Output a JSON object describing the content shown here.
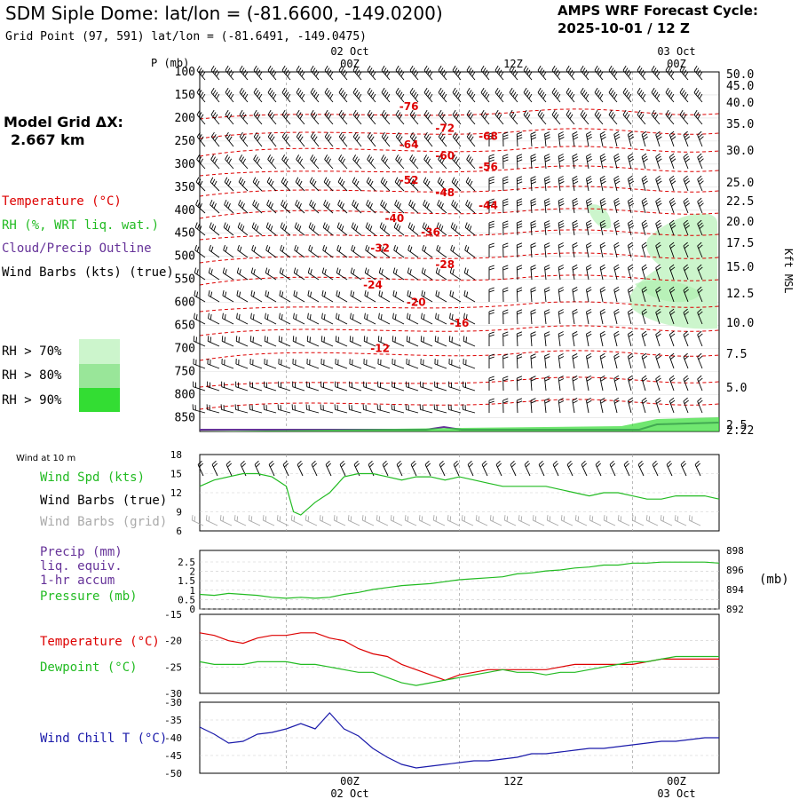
{
  "title": "SDM Siple Dome:  lat/lon = (-81.6600, -149.0200)",
  "subtitle": "Grid Point (97, 591) lat/lon = (-81.6491, -149.0475)",
  "cycle_line1": "AMPS WRF Forecast Cycle:",
  "cycle_line2": "2025-10-01 / 12  Z",
  "model_grid_label": "Model Grid ΔX:",
  "model_grid_value": "2.667 km",
  "legend": {
    "temperature": "Temperature (°C)",
    "rh": "RH (%, WRT liq. wat.)",
    "cloud": "Cloud/Precip Outline",
    "wind": "Wind Barbs (kts) (true)",
    "rh70": "RH > 70%",
    "rh80": "RH > 80%",
    "rh90": "RH > 90%",
    "rh70_color": "#ccf5cc",
    "rh80_color": "#99e699",
    "rh90_color": "#33dd33"
  },
  "colors": {
    "temp": "#dd0000",
    "rh": "#22bb22",
    "cloud": "#663399",
    "wind": "#000000",
    "chill": "#1a1aaa",
    "grid": "#aaaaaa"
  },
  "time_labels": {
    "top_dates": [
      "02 Oct",
      "03 Oct"
    ],
    "top_hours": [
      "00Z",
      "12Z",
      "00Z"
    ],
    "bottom_hours": [
      "00Z",
      "12Z",
      "00Z"
    ],
    "bottom_dates": [
      "02 Oct",
      "03 Oct"
    ]
  },
  "labels": {
    "p_axis": "P (mb)",
    "kft": "Kft MSL",
    "wind10m": "Wind at 10 m",
    "wind_spd": "Wind Spd (kts)",
    "wind_barbs_true": "Wind Barbs (true)",
    "wind_barbs_grid": "Wind Barbs (grid)",
    "precip": "Precip (mm)",
    "liq": "liq. equiv.",
    "accum": "1-hr accum",
    "pressure": "Pressure (mb)",
    "mb": "(mb)",
    "temp": "Temperature (°C)",
    "dew": "Dewpoint (°C)",
    "chill": "Wind Chill T (°C)"
  },
  "chart_data": [
    {
      "type": "contour",
      "name": "cross-section",
      "x_hours": [
        0,
        36
      ],
      "time_ticks": [
        {
          "hour": 6,
          "label": "00Z"
        },
        {
          "hour": 18,
          "label": "12Z"
        },
        {
          "hour": 30,
          "label": "00Z"
        }
      ],
      "pressure_levels": [
        100,
        150,
        200,
        250,
        300,
        350,
        400,
        450,
        500,
        550,
        600,
        650,
        700,
        750,
        800,
        850
      ],
      "height_kft": [
        "50.0",
        "45.0",
        "40.0",
        "35.0",
        "30.0",
        "25.0",
        "22.5",
        "20.0",
        "17.5",
        "15.0",
        "12.5",
        "10.0",
        "7.5",
        "5.0",
        "2.5",
        "2.22"
      ],
      "temperature_labels": [
        {
          "value": "-76",
          "hour": 14.5,
          "p": 175
        },
        {
          "value": "-72",
          "hour": 17.0,
          "p": 222
        },
        {
          "value": "-68",
          "hour": 20.0,
          "p": 240
        },
        {
          "value": "-64",
          "hour": 14.5,
          "p": 258
        },
        {
          "value": "-60",
          "hour": 17.0,
          "p": 282
        },
        {
          "value": "-56",
          "hour": 20.0,
          "p": 306
        },
        {
          "value": "-52",
          "hour": 14.5,
          "p": 335
        },
        {
          "value": "-48",
          "hour": 17.0,
          "p": 362
        },
        {
          "value": "-44",
          "hour": 20.0,
          "p": 390
        },
        {
          "value": "-40",
          "hour": 13.5,
          "p": 418
        },
        {
          "value": "-36",
          "hour": 16.0,
          "p": 448
        },
        {
          "value": "-32",
          "hour": 12.5,
          "p": 482
        },
        {
          "value": "-28",
          "hour": 17.0,
          "p": 518
        },
        {
          "value": "-24",
          "hour": 12.0,
          "p": 562
        },
        {
          "value": "-20",
          "hour": 15.0,
          "p": 600
        },
        {
          "value": "-16",
          "hour": 18.0,
          "p": 645
        },
        {
          "value": "-12",
          "hour": 12.5,
          "p": 700
        }
      ]
    },
    {
      "type": "line",
      "name": "Wind Spd (kts)",
      "ylim": [
        6,
        18
      ],
      "yticks": [
        6,
        9,
        12,
        15,
        18
      ],
      "x": [
        0,
        1,
        2,
        3,
        4,
        5,
        6,
        6.5,
        7,
        8,
        9,
        10,
        11,
        12,
        13,
        14,
        15,
        16,
        17,
        18,
        19,
        20,
        21,
        22,
        23,
        24,
        25,
        26,
        27,
        28,
        29,
        30,
        31,
        32,
        33,
        34,
        35,
        36
      ],
      "values": [
        13,
        14,
        14.5,
        15,
        15,
        14.5,
        13,
        9,
        8.5,
        10.5,
        12,
        14.5,
        15,
        15,
        14.5,
        14,
        14.5,
        14.5,
        14,
        14.5,
        14,
        13.5,
        13,
        13,
        13,
        13,
        12.5,
        12,
        11.5,
        12,
        12,
        11.5,
        11,
        11,
        11.5,
        11.5,
        11.5,
        11
      ]
    },
    {
      "type": "line",
      "name": "Pressure (mb)",
      "ylim": [
        892,
        898
      ],
      "yticks": [
        892,
        894,
        896,
        898
      ],
      "x": [
        0,
        1,
        2,
        3,
        4,
        5,
        6,
        7,
        8,
        9,
        10,
        11,
        12,
        13,
        14,
        15,
        16,
        17,
        18,
        19,
        20,
        21,
        22,
        23,
        24,
        25,
        26,
        27,
        28,
        29,
        30,
        31,
        32,
        33,
        34,
        35,
        36
      ],
      "values": [
        893.5,
        893.4,
        893.6,
        893.5,
        893.4,
        893.2,
        893.1,
        893.2,
        893.1,
        893.2,
        893.5,
        893.7,
        894.0,
        894.2,
        894.4,
        894.5,
        894.6,
        894.8,
        895.0,
        895.1,
        895.2,
        895.3,
        895.6,
        895.7,
        895.9,
        896.0,
        896.2,
        896.3,
        896.5,
        896.5,
        896.7,
        896.7,
        896.8,
        896.8,
        896.8,
        896.8,
        896.7
      ]
    },
    {
      "type": "line",
      "name": "Temperature / Dewpoint",
      "ylim": [
        -30,
        -15
      ],
      "yticks": [
        -30,
        -25,
        -20,
        -15
      ],
      "x": [
        0,
        1,
        2,
        3,
        4,
        5,
        6,
        7,
        8,
        9,
        10,
        11,
        12,
        13,
        14,
        15,
        16,
        17,
        18,
        19,
        20,
        21,
        22,
        23,
        24,
        25,
        26,
        27,
        28,
        29,
        30,
        31,
        32,
        33,
        34,
        35,
        36
      ],
      "series": [
        {
          "name": "Temperature (°C)",
          "values": [
            -18.5,
            -19,
            -20,
            -20.5,
            -19.5,
            -19,
            -19,
            -18.5,
            -18.5,
            -19.5,
            -20,
            -21.5,
            -22.5,
            -23,
            -24.5,
            -25.5,
            -26.5,
            -27.5,
            -26.5,
            -26,
            -25.5,
            -25.5,
            -25.5,
            -25.5,
            -25.5,
            -25,
            -24.5,
            -24.5,
            -24.5,
            -24.5,
            -24.5,
            -24,
            -23.5,
            -23.5,
            -23.5,
            -23.5,
            -23.5
          ]
        },
        {
          "name": "Dewpoint (°C)",
          "values": [
            -24,
            -24.5,
            -24.5,
            -24.5,
            -24,
            -24,
            -24,
            -24.5,
            -24.5,
            -25,
            -25.5,
            -26,
            -26,
            -27,
            -28,
            -28.5,
            -28,
            -27.5,
            -27,
            -26.5,
            -26,
            -25.5,
            -26,
            -26,
            -26.5,
            -26,
            -26,
            -25.5,
            -25,
            -24.5,
            -24,
            -24,
            -23.5,
            -23,
            -23,
            -23,
            -23
          ]
        }
      ]
    },
    {
      "type": "line",
      "name": "Wind Chill T (°C)",
      "ylim": [
        -50,
        -30
      ],
      "yticks": [
        -50,
        -45,
        -40,
        -35,
        -30
      ],
      "x": [
        0,
        1,
        2,
        3,
        4,
        5,
        6,
        7,
        8,
        9,
        10,
        11,
        12,
        13,
        14,
        15,
        16,
        17,
        18,
        19,
        20,
        21,
        22,
        23,
        24,
        25,
        26,
        27,
        28,
        29,
        30,
        31,
        32,
        33,
        34,
        35,
        36
      ],
      "values": [
        -37,
        -39,
        -41.5,
        -41,
        -39,
        -38.5,
        -37.5,
        -36,
        -37.5,
        -33,
        -37.5,
        -39.5,
        -43,
        -45.5,
        -47.5,
        -48.5,
        -48,
        -47.5,
        -47,
        -46.5,
        -46.5,
        -46,
        -45.5,
        -44.5,
        -44.5,
        -44,
        -43.5,
        -43,
        -43,
        -42.5,
        -42,
        -41.5,
        -41,
        -41,
        -40.5,
        -40,
        -40
      ]
    }
  ]
}
